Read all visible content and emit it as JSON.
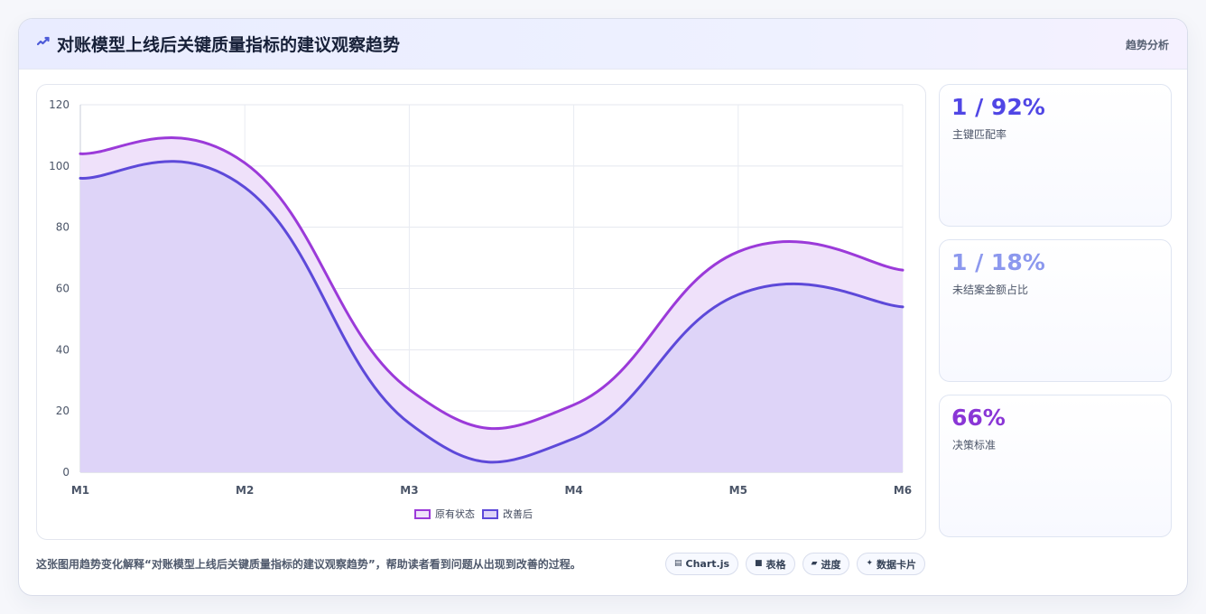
{
  "header": {
    "title": "对账模型上线后关键质量指标的建议观察趋势",
    "tag": "趋势分析",
    "icon": "trend-icon",
    "accent": "#4d5bd8"
  },
  "chart_data": {
    "type": "area",
    "title": "",
    "xlabel": "",
    "ylabel": "",
    "x": [
      "M1",
      "M2",
      "M3",
      "M4",
      "M5",
      "M6"
    ],
    "categories": [
      "M1",
      "M2",
      "M3",
      "M4",
      "M5",
      "M6"
    ],
    "yticks": [
      0,
      20,
      40,
      60,
      80,
      100,
      120
    ],
    "ylim": [
      0,
      120
    ],
    "grid": true,
    "legend": "bottom",
    "series": [
      {
        "name": "原有状态",
        "values": [
          104,
          101,
          27,
          22,
          72,
          66
        ],
        "stroke": "#9b3ad9",
        "fill": "#efe1fa"
      },
      {
        "name": "改善后",
        "values": [
          96,
          93,
          16,
          11,
          58,
          54
        ],
        "stroke": "#5d49d9",
        "fill": "#ded4f8"
      }
    ]
  },
  "side_cards": [
    {
      "value": "1 / 92%",
      "label": "主键匹配率",
      "color": "#5046e5"
    },
    {
      "value": "1 / 18%",
      "label": "未结案金额占比",
      "color": "#8c98ee"
    },
    {
      "value": "66%",
      "label": "决策标准",
      "color": "#8a36d6"
    }
  ],
  "footer": {
    "caption": "这张图用趋势变化解释“对账模型上线后关键质量指标的建议观察趋势”，帮助读者看到问题从出现到改善的过程。",
    "chips": [
      {
        "icon": "chart-icon",
        "icon_glyph": "▤",
        "label": "Chart.js"
      },
      {
        "icon": "table-icon",
        "icon_glyph": "■",
        "label": "表格"
      },
      {
        "icon": "progress-icon",
        "icon_glyph": "▰",
        "label": "进度"
      },
      {
        "icon": "data-card-icon",
        "icon_glyph": "✦",
        "label": "数据卡片"
      }
    ]
  }
}
